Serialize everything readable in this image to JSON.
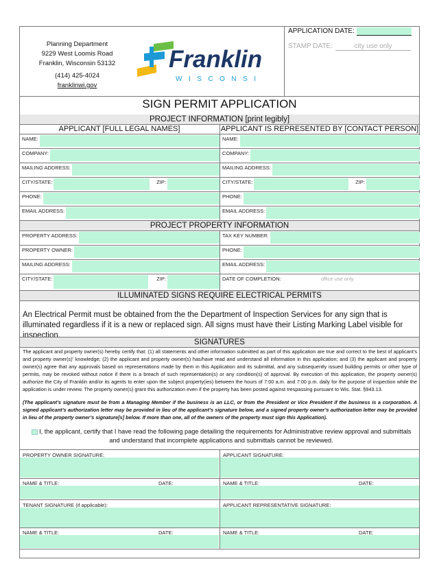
{
  "header": {
    "dept": "Planning Department",
    "address1": "9229 West Loomis Road",
    "address2": "Franklin, Wisconsin  53132",
    "phone": "(414) 425-4024",
    "website": "franklinwi.gov",
    "logo_text": "Franklin",
    "logo_sub": "WISCONSIN",
    "application_date_label": "APPLICATION DATE:",
    "stamp_date_label": "STAMP DATE:",
    "stamp_date_note": "city use only"
  },
  "title": "SIGN PERMIT APPLICATION",
  "project_info": {
    "heading": "PROJECT INFORMATION [print legibly]",
    "applicant_heading": "APPLICANT [FULL LEGAL NAMES]",
    "contact_heading": "APPLICANT IS REPRESENTED BY [CONTACT PERSON]",
    "labels": {
      "name": "NAME:",
      "company": "COMPANY:",
      "mailing": "MAILING ADDRESS:",
      "city": "CITY/STATE:",
      "zip": "ZIP:",
      "phone": "PHONE:",
      "email": "EMAIL ADDRESS:"
    }
  },
  "property_info": {
    "heading": "PROJECT PROPERTY INFORMATION",
    "property_address": "PROPERTY ADDRESS:",
    "property_owner": "PROPERTY OWNER:",
    "mailing": "MAILING ADDRESS:",
    "city": "CITY/STATE:",
    "zip": "ZIP:",
    "tax_key": "TAX KEY NUMBER:",
    "phone": "PHONE:",
    "email": "EMAIL ADDRESS:",
    "completion": "DATE OF COMPLETION:",
    "completion_note": "office use only"
  },
  "electrical": {
    "heading": "ILLUMINATED SIGNS REQUIRE ELECTRICAL PERMITS",
    "text": "An Electrical Permit must be obtained from the the Department of Inspection Services for any sign that is illuminated regardless if it is a new or replaced sign. All signs must have their Listing Marking Label visible for inspection."
  },
  "signatures": {
    "heading": "SIGNATURES",
    "certify": "The applicant and property owner(s) hereby certify that: (1) all statements and other information submitted as part of this application are true and correct to the best of applicant’s and property owner(s)’ knowledge; (2) the applicant and property owner(s) has/have read and understand all information in this application; and (3) the applicant and property owner(s) agree that any approvals based on representations made by them in this Application and its submittal, and any subsequently issued building permits or other type of permits, may be revoked without notice if there is a breach of such representation(s) or any condition(s) of approval. By execution of this application, the property owner(s) authorize the City of Franklin and/or its agents to enter upon the subject property(ies) between the hours of 7:00 a.m. and 7:00 p.m. daily for the purpose of inspection while the application is under review. The property owner(s) grant this authorization even if the property has been posted against trespassing pursuant to Wis. Stat. §943.13.",
    "note": "(The applicant’s signature must be from a Managing Member if the business is an LLC, or from the President or Vice President if the business is a corporation. A signed applicant’s authorization letter may be provided in lieu of the applicant’s signature below, and a signed property owner’s authorization letter may be provided in lieu of the property owner’s signature[s] below. If more than one, all of the owners of the property must sign this Application).",
    "checkbox_text": "I, the applicant, certify that I have read the following page detailing the requirements for Administrative review approval and submittals and understand that incomplete applications and submittals cannot be reviewed.",
    "owner_sig": "PROPERTY OWNER SIGNATURE:",
    "applicant_sig": "APPLICANT SIGNATURE:",
    "name_title": "NAME & TITLE:",
    "date": "DATE:",
    "tenant_sig": "TENANT SIGNATURE (if applicable):",
    "rep_sig": "APPLICANT REPRESENTATIVE SIGNATURE:"
  },
  "colors": {
    "field": "#bcf5d9",
    "navy": "#1c3766",
    "blue": "#1b9ad6",
    "green": "#6cbf45",
    "yellow": "#f5b914"
  }
}
